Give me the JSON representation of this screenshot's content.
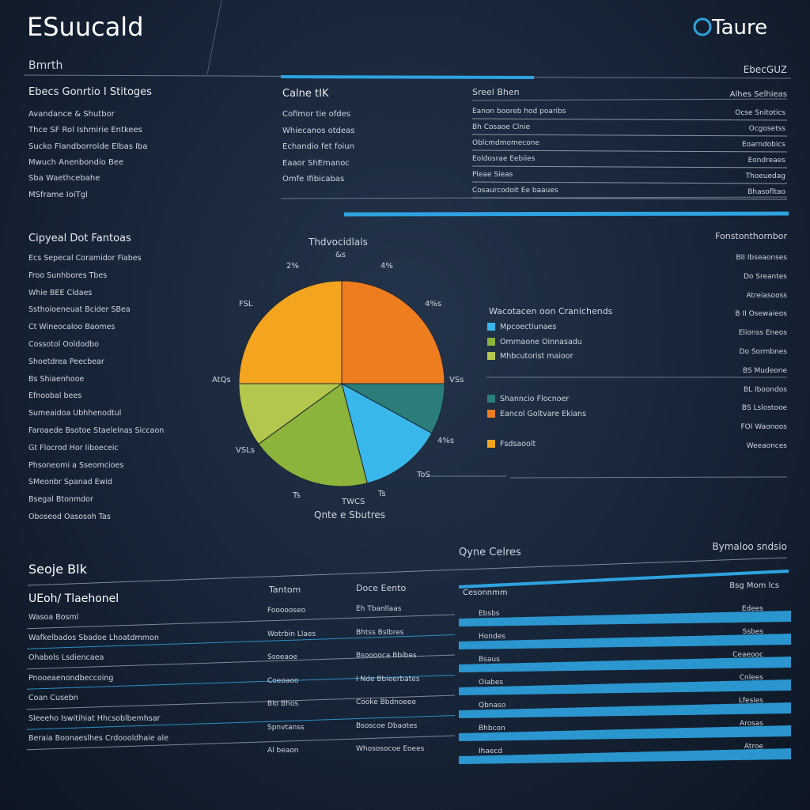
{
  "header": {
    "title": "ESuucald",
    "logo": "Taure",
    "subtitle": "Bmrth",
    "top_right": "EbecGUZ"
  },
  "section_1": {
    "left": {
      "heading": "Ebecs Gonrtio I Stitoges",
      "items": [
        "Avandance & Shutbor",
        "Thce SF Rol Ishmirie Entkees",
        "Sucko Flandborrolde Elbas Iba",
        "Mwuch Anenbondio Bee",
        "Sba Waethcebahe",
        "MSframe IoiTgl"
      ]
    },
    "middle": {
      "heading": "Calne tIK",
      "items": [
        "Cofimor tie ofdes",
        "Whiecanos otdeas",
        "Echandio fet foiun",
        "Eaaor ShEmanoc",
        "Omfe Ifibicabas"
      ]
    },
    "right": {
      "heading": "Sreel Bhen",
      "heading_right": "Alhes Selhieas",
      "rows": [
        [
          "Eanon booreb hod poaribs",
          "Ocse Snitotics"
        ],
        [
          "Bh Cosaoe Clnie",
          "Ocgosetss"
        ],
        [
          "Oblcmdmomecone",
          "Eoarndobics"
        ],
        [
          "Eoldosrae Eebiies",
          "Eondreaes"
        ],
        [
          "Pleae Sieas",
          "Thoeuedag"
        ],
        [
          "Cosaurcodoit Ee baaues",
          "Bhasofltao"
        ]
      ]
    }
  },
  "section_2": {
    "left": {
      "heading": "Cipyeal Dot Fantoas",
      "items": [
        "Ecs Sepecal Coramidor Fiabes",
        "Froo Sunhbores Tbes",
        "Whie BEE Cldaes",
        "Ssthoioeneuat Bcider SBea",
        "Ct Wineocaloo Baomes",
        "Cossotol Ooldodbo",
        "Shoetdrea Peecbear",
        "Bs Shiaenhooe",
        "Efnoobal bees",
        "Sumeaidoa Ubhhenodtul",
        "Faroaede Bsotoe Staelelnas Siccaon",
        "Gt Flocrod Hor Iiboeceic",
        "Phsoneomi a Sseomcioes",
        "SMeonbr Spanad Ewid",
        "Bsegal Btonmdor",
        "Oboseod Oasosoh Tas"
      ]
    },
    "right": {
      "heading": "Fonstonthornbor",
      "items": [
        "BII Ibseaonses",
        "Do Sreantes",
        "Atreiasooss",
        "B II Osewaieos",
        "Elionss Eneos",
        "Do Sormbnes",
        "BS Mudeone",
        "BL Iboondos",
        "BS Lslostooe",
        "FOI Waonoos",
        "Weeaonces"
      ]
    }
  },
  "chart_data": {
    "type": "pie",
    "title": "Thdvocidlals",
    "caption": "Qnte e Sbutres",
    "legend_title": "Wacotacen oon Cranichends",
    "categories": [
      "Eancol Goltvare Ekians",
      "Shanncio Flocnoer",
      "Mpcoectiunaes",
      "Omrnaone Oinnasadu",
      "Mhbcutorist maioor",
      "Fsdsaoolt"
    ],
    "values": [
      25,
      8,
      13,
      19,
      10,
      25
    ],
    "colors": [
      "#ee7d1f",
      "#2a7d78",
      "#3ab7ea",
      "#8cb33a",
      "#b3c74c",
      "#f3a51f"
    ],
    "annotations": [
      "2%",
      "&s",
      "4%",
      "4%s",
      "VSs",
      "4%s",
      "ToS",
      "Ts",
      "Ts",
      "VSLs",
      "AtQs",
      "FSL",
      "TWCS"
    ]
  },
  "section_3": {
    "heading": "Seoje Blk",
    "subheading": "UEoh/ Tlaehonel",
    "items": [
      "Wasoa Bosml",
      "Wafkelbados Sbadoe Lhoatdmmon",
      "Ohabols Lsdiencaea",
      "Pnooeaenondbeccoing",
      "Coan Cusebn",
      "Sleeeho Iswitihiat Hhcsoblbemhsar",
      "Beraia Boonaeslhes Crdoooldhaie ale"
    ],
    "table": {
      "headers": [
        "Tantom",
        "Doce Eento"
      ],
      "rows": [
        [
          "Foooooseo",
          "Eh Tbanllaas"
        ],
        [
          "Wotrbin Llaes",
          "Bhtss Bslbres"
        ],
        [
          "Ssoeaoe",
          "Bsooooca Bbibes"
        ],
        [
          "Coeoaoo",
          "I Nde Bbieerbates"
        ],
        [
          "Bio Bhos",
          "Cooke Bbdnoeee"
        ],
        [
          "Spnvtanss",
          "Bsoscoe Dbaotes"
        ],
        [
          "Al beaon",
          "Whososocoe Eoees"
        ]
      ]
    },
    "bars": {
      "heading": "Qyne Celres",
      "heading_right": "Bymaloo sndsio",
      "column": "Cesonnmm",
      "column_right": "Bsg Mom lcs",
      "rows": [
        [
          "Ebsbs",
          "Edees"
        ],
        [
          "Hondes",
          "Ssbes"
        ],
        [
          "Bsaus",
          "Ceaeooc"
        ],
        [
          "Oiabes",
          "Cnlees"
        ],
        [
          "Qbnaso",
          "Lfesies"
        ],
        [
          "Bhbcon",
          "Arosas"
        ],
        [
          "Ihaecd",
          "Atroe"
        ]
      ]
    }
  }
}
